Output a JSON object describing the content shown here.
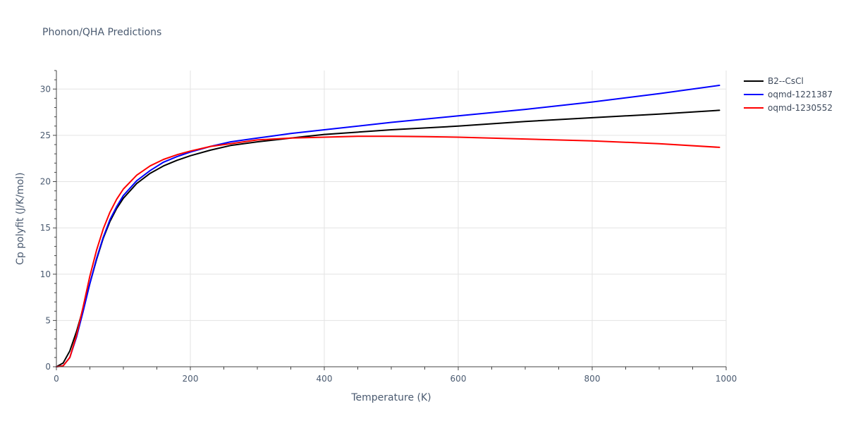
{
  "chart_data": {
    "type": "line",
    "title": "Phonon/QHA Predictions",
    "xlabel": "Temperature (K)",
    "ylabel": "Cp polyfit (J/K/mol)",
    "xlim": [
      0,
      1000
    ],
    "ylim": [
      0,
      32
    ],
    "x_ticks": [
      0,
      200,
      400,
      600,
      800,
      1000
    ],
    "y_ticks": [
      0,
      5,
      10,
      15,
      20,
      25,
      30
    ],
    "grid": true,
    "legend_position": "top-right",
    "series": [
      {
        "name": "B2--CsCl",
        "color": "#000000",
        "x": [
          0,
          10,
          20,
          30,
          40,
          50,
          60,
          70,
          80,
          90,
          100,
          120,
          140,
          160,
          180,
          200,
          230,
          260,
          300,
          350,
          400,
          500,
          600,
          700,
          800,
          900,
          990
        ],
        "y": [
          0,
          0.4,
          1.7,
          3.8,
          6.3,
          9.0,
          11.6,
          13.9,
          15.7,
          17.1,
          18.2,
          19.8,
          20.9,
          21.7,
          22.3,
          22.8,
          23.4,
          23.9,
          24.3,
          24.7,
          25.1,
          25.6,
          26.0,
          26.5,
          26.9,
          27.3,
          27.7
        ]
      },
      {
        "name": "oqmd-1221387",
        "color": "#0000ff",
        "x": [
          0,
          10,
          20,
          30,
          40,
          50,
          60,
          70,
          80,
          90,
          100,
          120,
          140,
          160,
          180,
          200,
          230,
          260,
          300,
          350,
          400,
          500,
          600,
          700,
          800,
          900,
          990
        ],
        "y": [
          0,
          0.1,
          1.0,
          3.2,
          6.0,
          9.0,
          11.7,
          14.0,
          15.9,
          17.3,
          18.5,
          20.1,
          21.2,
          22.1,
          22.7,
          23.2,
          23.8,
          24.3,
          24.7,
          25.2,
          25.6,
          26.4,
          27.1,
          27.8,
          28.6,
          29.5,
          30.4
        ]
      },
      {
        "name": "oqmd-1230552",
        "color": "#ff0000",
        "x": [
          0,
          10,
          20,
          30,
          40,
          50,
          60,
          70,
          80,
          90,
          100,
          120,
          140,
          160,
          180,
          200,
          230,
          260,
          300,
          350,
          400,
          450,
          500,
          550,
          600,
          700,
          800,
          900,
          990
        ],
        "y": [
          0,
          0.1,
          1.0,
          3.4,
          6.5,
          9.8,
          12.6,
          14.9,
          16.7,
          18.1,
          19.2,
          20.7,
          21.7,
          22.4,
          22.9,
          23.3,
          23.8,
          24.1,
          24.5,
          24.7,
          24.8,
          24.9,
          24.9,
          24.85,
          24.8,
          24.6,
          24.4,
          24.1,
          23.7
        ]
      }
    ]
  }
}
